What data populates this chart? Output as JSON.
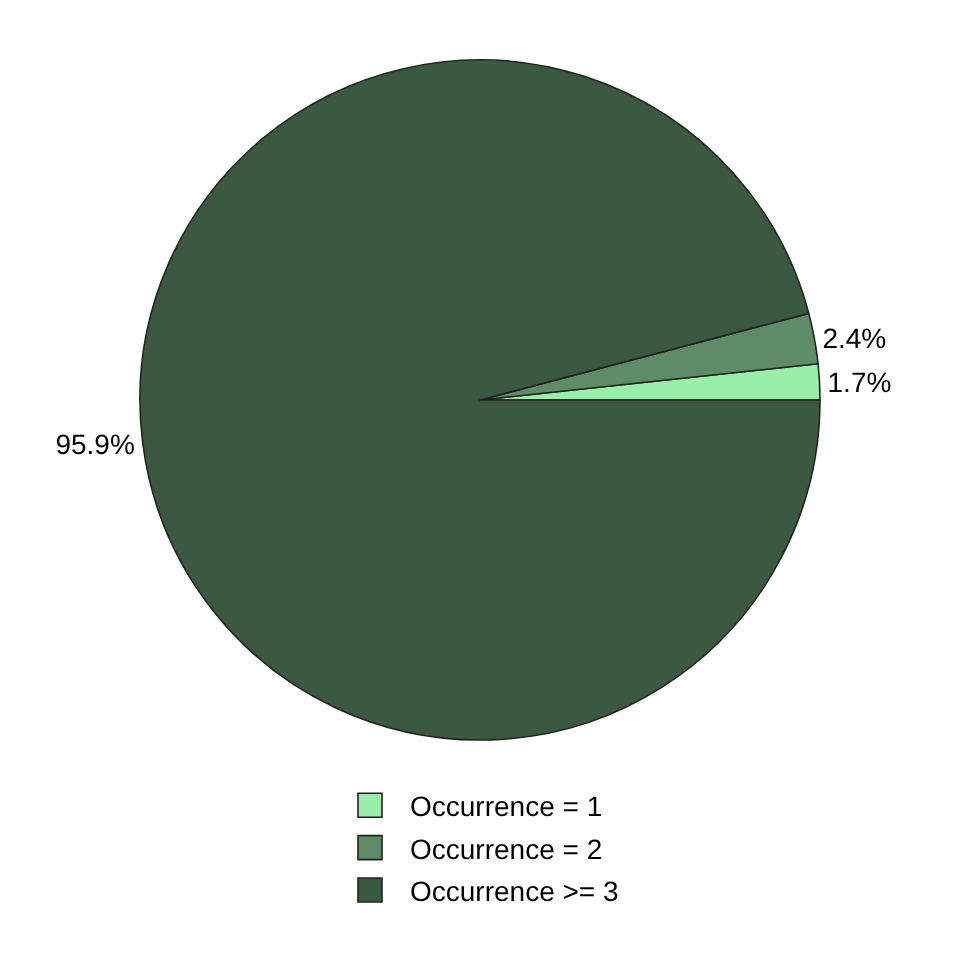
{
  "chart_data": {
    "type": "pie",
    "categories": [
      "Occurrence = 1",
      "Occurrence = 2",
      "Occurrence >= 3"
    ],
    "values": [
      1.7,
      2.4,
      95.9
    ],
    "colors": [
      "#99eeaa",
      "#5e8c66",
      "#3b5940"
    ],
    "value_labels": [
      "1.7%",
      "2.4%",
      "95.9%"
    ],
    "legend": "bottom"
  }
}
